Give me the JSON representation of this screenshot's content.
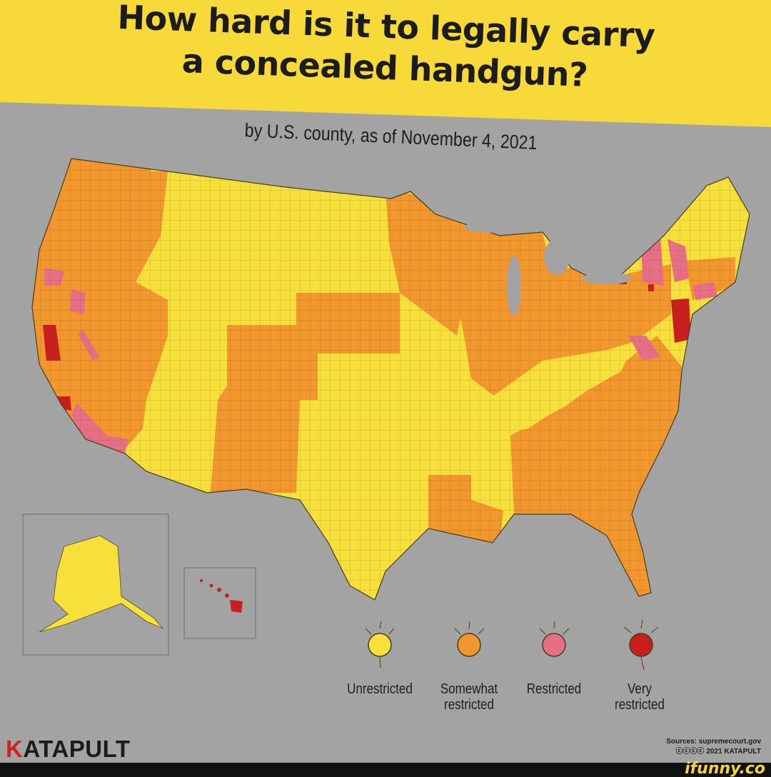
{
  "title": {
    "line1": "How hard is it to legally carry",
    "line2": "a concealed handgun?"
  },
  "subtitle": "by U.S. county, as of November 4, 2021",
  "colors": {
    "background": "#a3a3a3",
    "banner": "#f8d93a",
    "unrestricted": "#f7df3c",
    "somewhat_restricted": "#f2962e",
    "restricted": "#e66f85",
    "very_restricted": "#c81e1e"
  },
  "legend": [
    {
      "key": "unrestricted",
      "label": "Unrestricted",
      "label2": ""
    },
    {
      "key": "somewhat_restricted",
      "label": "Somewhat",
      "label2": "restricted"
    },
    {
      "key": "restricted",
      "label": "Restricted",
      "label2": ""
    },
    {
      "key": "very_restricted",
      "label": "Very",
      "label2": "restricted"
    }
  ],
  "brand": {
    "k": "K",
    "rest": "ATAPULT"
  },
  "sources": {
    "line1": "Sources: supremecourt.gov",
    "line2": "2021 KATAPULT"
  },
  "watermark": "ifunny.co"
}
